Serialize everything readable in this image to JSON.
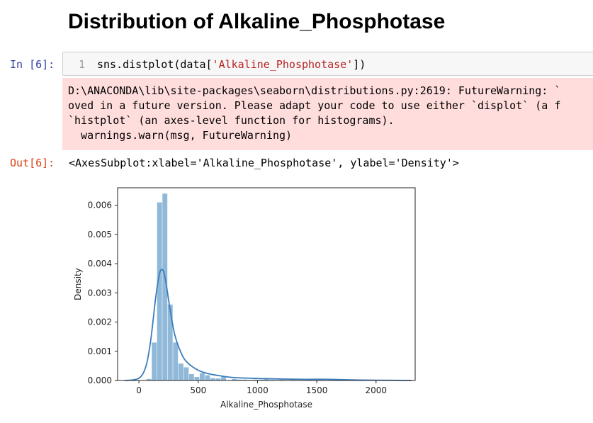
{
  "heading": "Distribution of Alkaline_Phosphotase",
  "cell_in": {
    "prompt": "In [6]:",
    "line_number": "1",
    "code_prefix": "sns.distplot(data[",
    "code_string": "'Alkaline_Phosphotase'",
    "code_suffix": "])"
  },
  "stderr_lines": [
    "D:\\ANACONDA\\lib\\site-packages\\seaborn\\distributions.py:2619: FutureWarning: `",
    "oved in a future version. Please adapt your code to use either `displot` (a f",
    "`histplot` (an axes-level function for histograms).",
    "  warnings.warn(msg, FutureWarning)"
  ],
  "cell_out": {
    "prompt": "Out[6]:",
    "text": "<AxesSubplot:xlabel='Alkaline_Phosphotase', ylabel='Density'>"
  },
  "chart_data": {
    "type": "bar",
    "xlabel": "Alkaline_Phosphotase",
    "ylabel": "Density",
    "xlim": [
      -180,
      2330
    ],
    "ylim": [
      0,
      0.0066
    ],
    "xticks": [
      0,
      500,
      1000,
      1500,
      2000
    ],
    "xtick_labels": [
      "0",
      "500",
      "1000",
      "1500",
      "2000"
    ],
    "yticks": [
      0,
      0.001,
      0.002,
      0.003,
      0.004,
      0.005,
      0.006
    ],
    "ytick_labels": [
      "0.000",
      "0.001",
      "0.002",
      "0.003",
      "0.004",
      "0.005",
      "0.006"
    ],
    "bin_width": 45,
    "bin_left_edges": [
      63,
      108,
      153,
      198,
      243,
      288,
      333,
      378,
      423,
      468,
      513,
      558,
      603,
      648,
      693,
      738,
      783,
      828,
      873,
      918,
      963,
      1008,
      1053,
      1098,
      1143,
      1188,
      1233,
      1278,
      1323,
      1368,
      1413,
      1458,
      1503,
      1548,
      1593,
      1638,
      1683
    ],
    "density": [
      5e-05,
      0.0013,
      0.0061,
      0.0064,
      0.0026,
      0.0013,
      0.00058,
      0.00045,
      0.00022,
      0.00012,
      0.00025,
      0.00018,
      8e-05,
      7e-05,
      0.00012,
      0.0,
      5e-05,
      3e-05,
      3e-05,
      2e-05,
      3e-05,
      3e-05,
      5e-05,
      2e-05,
      0.0,
      2e-05,
      0.0,
      2e-05,
      0.0,
      0.0,
      3e-05,
      2e-05,
      2e-05,
      0.0,
      2e-05,
      3e-05,
      2e-05
    ],
    "kde_x": [
      -120,
      0,
      60,
      100,
      140,
      170,
      190,
      210,
      230,
      260,
      300,
      350,
      400,
      500,
      600,
      700,
      800,
      1000,
      1200,
      1400,
      1600,
      1800,
      2000,
      2300
    ],
    "kde_y": [
      0.0,
      8e-05,
      0.0005,
      0.0014,
      0.0028,
      0.0036,
      0.0038,
      0.0037,
      0.0033,
      0.0025,
      0.0016,
      0.001,
      0.00065,
      0.00035,
      0.00022,
      0.00015,
      0.0001,
      7e-05,
      5e-05,
      4e-05,
      4e-05,
      2e-05,
      1e-05,
      0.0
    ],
    "bar_color": "#90b8d8",
    "line_color": "#3b7dbb",
    "grid": false
  }
}
